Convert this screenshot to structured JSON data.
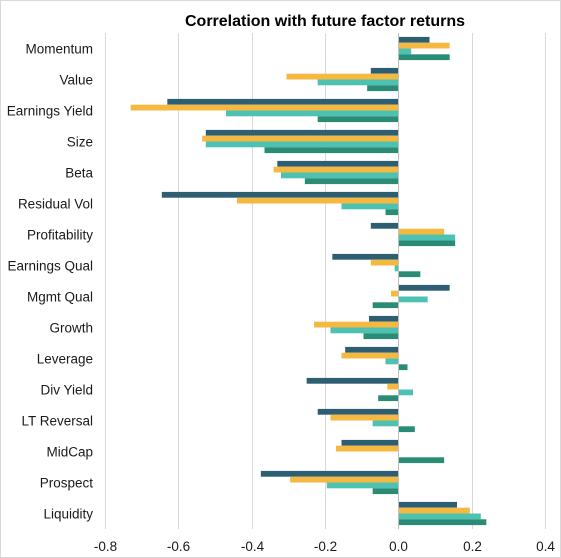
{
  "chart_data": {
    "type": "bar",
    "orientation": "horizontal",
    "title": "Correlation with future factor returns",
    "xlabel": "",
    "ylabel": "",
    "xlim": [
      -0.8,
      0.4
    ],
    "xticks": [
      "-0.8",
      "-0.6",
      "-0.4",
      "-0.2",
      "0.0",
      "0.2",
      "0.4"
    ],
    "xtick_values": [
      -0.8,
      -0.6,
      -0.4,
      -0.2,
      0.0,
      0.2,
      0.4
    ],
    "grid": "vertical",
    "legend": "none",
    "categories": [
      "Momentum",
      "Value",
      "Earnings Yield",
      "Size",
      "Beta",
      "Residual Vol",
      "Profitability",
      "Earnings Qual",
      "Mgmt Qual",
      "Growth",
      "Leverage",
      "Div Yield",
      "LT Reversal",
      "MidCap",
      "Prospect",
      "Liquidity"
    ],
    "series": [
      {
        "color": "#2e5e72",
        "values": [
          0.085,
          -0.075,
          -0.63,
          -0.525,
          -0.33,
          -0.645,
          -0.075,
          -0.18,
          0.14,
          -0.08,
          -0.145,
          -0.25,
          -0.22,
          -0.155,
          -0.375,
          0.16
        ]
      },
      {
        "color": "#f5b942",
        "values": [
          0.14,
          -0.305,
          -0.73,
          -0.535,
          -0.34,
          -0.44,
          0.125,
          -0.075,
          -0.02,
          -0.23,
          -0.155,
          -0.03,
          -0.185,
          -0.17,
          -0.295,
          0.195
        ]
      },
      {
        "color": "#4dc2b2",
        "values": [
          0.035,
          -0.22,
          -0.47,
          -0.525,
          -0.32,
          -0.155,
          0.155,
          -0.01,
          0.08,
          -0.185,
          -0.035,
          0.04,
          -0.07,
          0.0,
          -0.195,
          0.225
        ]
      },
      {
        "color": "#2a8c74",
        "values": [
          0.14,
          -0.085,
          -0.22,
          -0.365,
          -0.255,
          -0.035,
          0.155,
          0.06,
          -0.07,
          -0.095,
          0.025,
          -0.055,
          0.045,
          0.125,
          -0.07,
          0.24
        ]
      }
    ]
  }
}
